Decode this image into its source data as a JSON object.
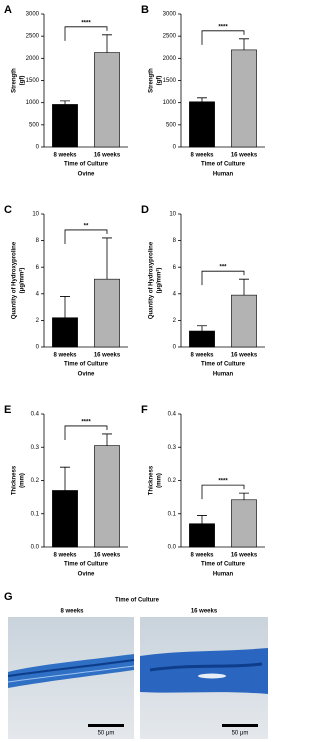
{
  "chart_data": [
    {
      "type": "bar",
      "label": "A",
      "ylabel": [
        "Strength",
        "(gf)"
      ],
      "xlabel": "Time of Culture",
      "subtitle": "Ovine",
      "categories": [
        "8 weeks",
        "16 weeks"
      ],
      "values": [
        960,
        2130
      ],
      "errors": [
        80,
        400
      ],
      "colors": [
        "#000000",
        "#b3b3b3"
      ],
      "ylim": [
        0,
        3000
      ],
      "yticks": [
        0,
        500,
        1000,
        1500,
        2000,
        2500,
        3000
      ],
      "significance": "****"
    },
    {
      "type": "bar",
      "label": "B",
      "ylabel": [
        "Strength",
        "(gf)"
      ],
      "xlabel": "Time of Culture",
      "subtitle": "Human",
      "categories": [
        "8 weeks",
        "16 weeks"
      ],
      "values": [
        1020,
        2190
      ],
      "errors": [
        90,
        250
      ],
      "colors": [
        "#000000",
        "#b3b3b3"
      ],
      "ylim": [
        0,
        3000
      ],
      "yticks": [
        0,
        500,
        1000,
        1500,
        2000,
        2500,
        3000
      ],
      "significance": "****"
    },
    {
      "type": "bar",
      "label": "C",
      "ylabel": [
        "Quantity of Hydroxyproline",
        "(μg/mm²)"
      ],
      "xlabel": "Time of Culture",
      "subtitle": "Ovine",
      "categories": [
        "8 weeks",
        "16 weeks"
      ],
      "values": [
        2.2,
        5.1
      ],
      "errors": [
        1.6,
        3.1
      ],
      "colors": [
        "#000000",
        "#b3b3b3"
      ],
      "ylim": [
        0,
        10
      ],
      "yticks": [
        0,
        2,
        4,
        6,
        8,
        10
      ],
      "significance": "**"
    },
    {
      "type": "bar",
      "label": "D",
      "ylabel": [
        "Quantity of Hydroxyproline",
        "(μg/mm²)"
      ],
      "xlabel": "Time of Culture",
      "subtitle": "Human",
      "categories": [
        "8 weeks",
        "16 weeks"
      ],
      "values": [
        1.2,
        3.9
      ],
      "errors": [
        0.4,
        1.2
      ],
      "colors": [
        "#000000",
        "#b3b3b3"
      ],
      "ylim": [
        0,
        10
      ],
      "yticks": [
        0,
        2,
        4,
        6,
        8,
        10
      ],
      "significance": "***"
    },
    {
      "type": "bar",
      "label": "E",
      "ylabel": [
        "Thickness",
        "(mm)"
      ],
      "xlabel": "Time of Culture",
      "subtitle": "Ovine",
      "categories": [
        "8 weeks",
        "16 weeks"
      ],
      "values": [
        0.17,
        0.305
      ],
      "errors": [
        0.07,
        0.035
      ],
      "colors": [
        "#000000",
        "#b3b3b3"
      ],
      "ylim": [
        0,
        0.4
      ],
      "yticks": [
        {
          "value": 0,
          "label": "0.0"
        },
        0.1,
        0.2,
        0.3,
        0.4
      ],
      "significance": "****"
    },
    {
      "type": "bar",
      "label": "F",
      "ylabel": [
        "Thickness",
        "(mm)"
      ],
      "xlabel": "Time of Culture",
      "subtitle": "Human",
      "categories": [
        "8 weeks",
        "16 weeks"
      ],
      "values": [
        0.07,
        0.142
      ],
      "errors": [
        0.025,
        0.02
      ],
      "colors": [
        "#000000",
        "#b3b3b3"
      ],
      "ylim": [
        0,
        0.4
      ],
      "yticks": [
        {
          "value": 0,
          "label": "0.0"
        },
        0.1,
        0.2,
        0.3,
        0.4
      ],
      "significance": "****"
    }
  ],
  "panel_g": {
    "label": "G",
    "title": "Time of Culture",
    "left": "8 weeks",
    "right": "16 weeks",
    "scale_left": "50 μm",
    "scale_right": "50 μm"
  }
}
